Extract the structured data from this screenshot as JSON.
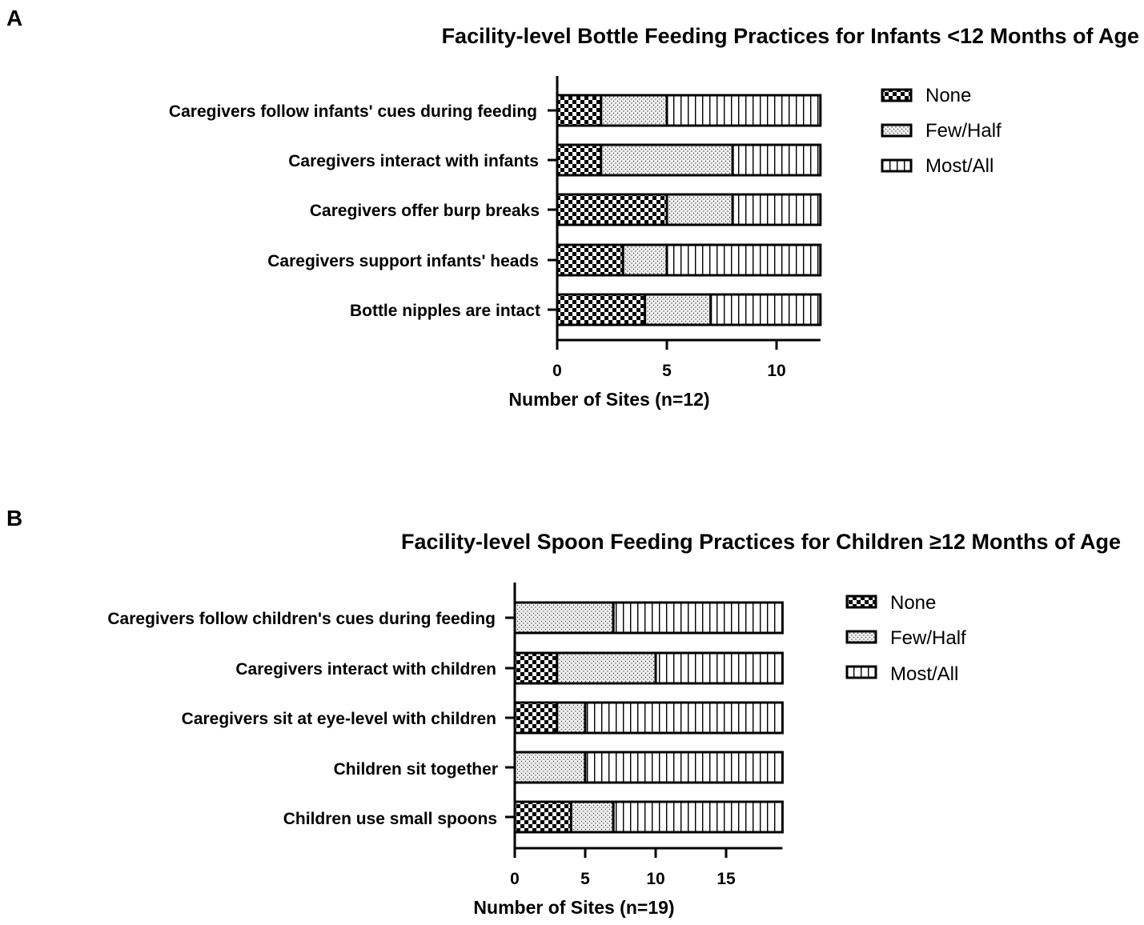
{
  "chart_data": [
    {
      "panel": "A",
      "type": "bar",
      "orientation": "horizontal",
      "stacked": true,
      "title": "Facility-level Bottle Feeding Practices for Infants <12 Months of Age",
      "xlabel": "Number of Sites (n=12)",
      "ylabel": "",
      "xlim": [
        0,
        12
      ],
      "xticks": [
        0,
        5,
        10
      ],
      "legend_position": "right",
      "categories": [
        "Caregivers follow infants' cues during feeding",
        "Caregivers interact with infants",
        "Caregivers offer burp breaks",
        "Caregivers support infants' heads",
        "Bottle nipples are intact"
      ],
      "series": [
        {
          "name": "None",
          "pattern": "checker",
          "values": [
            2,
            2,
            5,
            3,
            4
          ]
        },
        {
          "name": "Few/Half",
          "pattern": "dots",
          "values": [
            3,
            6,
            3,
            2,
            3
          ]
        },
        {
          "name": "Most/All",
          "pattern": "vlines",
          "values": [
            7,
            4,
            4,
            7,
            5
          ]
        }
      ]
    },
    {
      "panel": "B",
      "type": "bar",
      "orientation": "horizontal",
      "stacked": true,
      "title": "Facility-level Spoon Feeding Practices for Children ≥12 Months of Age",
      "xlabel": "Number of Sites (n=19)",
      "ylabel": "",
      "xlim": [
        0,
        19
      ],
      "xticks": [
        0,
        5,
        10,
        15
      ],
      "legend_position": "right",
      "categories": [
        "Caregivers follow children's cues during feeding",
        "Caregivers interact with children",
        "Caregivers sit at eye-level with children",
        "Children sit together",
        "Children use small spoons"
      ],
      "series": [
        {
          "name": "None",
          "pattern": "checker",
          "values": [
            0,
            3,
            3,
            0,
            4
          ]
        },
        {
          "name": "Few/Half",
          "pattern": "dots",
          "values": [
            7,
            7,
            2,
            5,
            3
          ]
        },
        {
          "name": "Most/All",
          "pattern": "vlines",
          "values": [
            12,
            9,
            14,
            14,
            12
          ]
        }
      ]
    }
  ]
}
